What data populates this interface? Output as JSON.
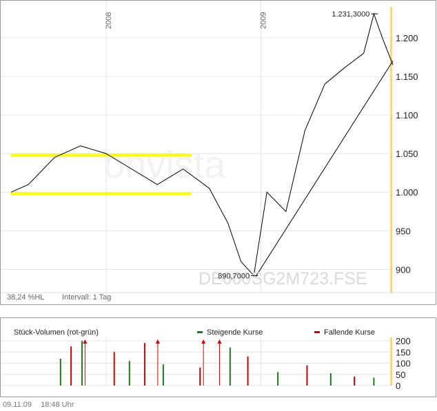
{
  "chart_data": [
    {
      "type": "line",
      "title": "",
      "year_labels": [
        "2008",
        "2009"
      ],
      "y_ticks": [
        "1.200",
        "1.150",
        "1.100",
        "1.050",
        "1.000",
        "950",
        "900"
      ],
      "y_tick_values": [
        1200,
        1150,
        1100,
        1050,
        1000,
        950,
        900
      ],
      "ylim": [
        870,
        1240
      ],
      "xlim": [
        "2007-05-21",
        "2009-11-09"
      ],
      "high_label": "1.231,3000",
      "low_label": "890,7000",
      "x_dates": [
        "2007-05-21",
        "2007-07-01",
        "2007-09-01",
        "2007-11-01",
        "2008-01-01",
        "2008-03-01",
        "2008-05-01",
        "2008-07-01",
        "2008-09-01",
        "2008-10-15",
        "2008-11-15",
        "2008-12-15",
        "2009-01-15",
        "2009-03-01",
        "2009-04-15",
        "2009-06-01",
        "2009-07-15",
        "2009-09-01",
        "2009-09-25",
        "2009-10-15",
        "2009-11-09"
      ],
      "y_values": [
        1000,
        1010,
        1045,
        1060,
        1050,
        1030,
        1010,
        1030,
        1005,
        960,
        910,
        892,
        1000,
        975,
        1080,
        1140,
        1160,
        1180,
        1231,
        1200,
        1165
      ],
      "support_lines": [
        {
          "y": 1048,
          "x_start": "2007-05-21",
          "x_end": "2008-07-20"
        },
        {
          "y": 998,
          "x_start": "2007-05-21",
          "x_end": "2008-07-20"
        }
      ],
      "trend_line": {
        "x_start": "2008-12-20",
        "y_start": 891,
        "x_end": "2009-11-09",
        "y_end": 1170
      },
      "footer_left": "38,24 %HL",
      "footer_interval": "Intervall: 1 Tag",
      "isin_label": "DE000SG2M723.FSE",
      "watermark": "onvista"
    },
    {
      "type": "bar",
      "title": "Stück-Volumen (rot-grün)",
      "legend": [
        {
          "name": "Steigende Kurse",
          "color": "#1a7a1a"
        },
        {
          "name": "Fallende Kurse",
          "color": "#cc0000"
        }
      ],
      "y_ticks": [
        "200",
        "150",
        "100",
        "50",
        "0"
      ],
      "y_tick_values": [
        200,
        150,
        100,
        50,
        0
      ],
      "ylim": [
        0,
        200
      ],
      "x_dates": [
        "2007-09-15",
        "2007-10-10",
        "2007-11-05",
        "2008-01-20",
        "2008-02-25",
        "2008-04-01",
        "2008-05-15",
        "2008-08-10",
        "2008-10-20",
        "2008-12-01",
        "2009-02-10",
        "2009-04-20",
        "2009-06-15",
        "2009-08-10",
        "2009-09-25"
      ],
      "values": [
        120,
        175,
        200,
        150,
        110,
        190,
        95,
        80,
        170,
        130,
        60,
        90,
        55,
        40,
        35
      ],
      "overflow_markers_dates": [
        "2007-11-12",
        "2008-05-02",
        "2008-08-18",
        "2008-09-25"
      ]
    }
  ],
  "footer": {
    "date": "09.11.09",
    "time": "18:48 Uhr"
  },
  "colors": {
    "price": "#000000",
    "support": "#ffff00",
    "highlight": "#f5d68a",
    "rising": "#1a7a1a",
    "falling": "#cc0000",
    "grid": "#dedede",
    "frame": "#999999"
  }
}
